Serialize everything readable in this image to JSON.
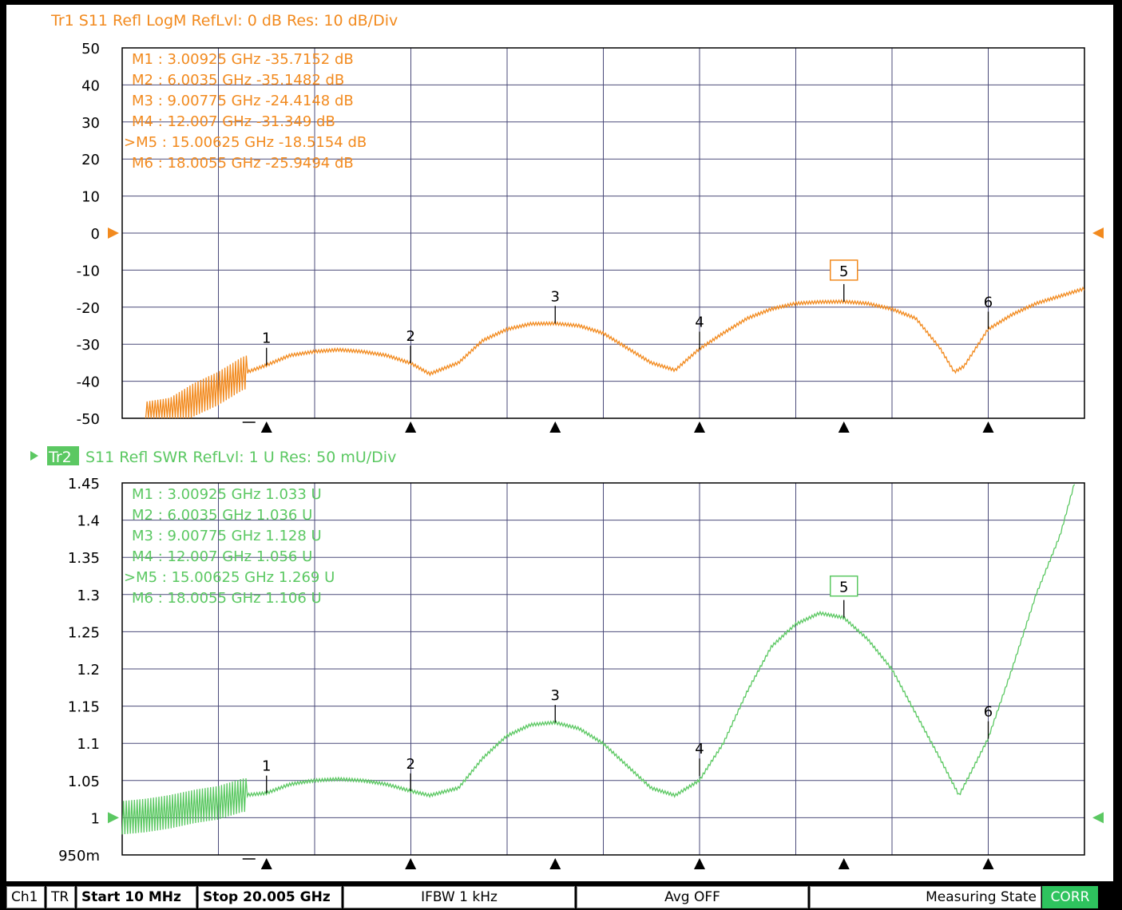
{
  "colors": {
    "trace1": "#f28a1e",
    "trace2": "#5bc862",
    "grid": "#4b4b7a",
    "frame": "#000000"
  },
  "chart_data": [
    {
      "type": "line",
      "title": "Tr1  S11 Refl LogM RefLvl: 0  dB Res: 10  dB/Div",
      "trace_tag": "",
      "xlabel": "",
      "ylabel": "",
      "xlim": [
        0.01,
        20.005
      ],
      "ylim": [
        -50,
        50
      ],
      "yticks": [
        "50",
        "40",
        "30",
        "20",
        "10",
        "0",
        "-10",
        "-20",
        "-30",
        "-40",
        "-50"
      ],
      "ref_value": 0,
      "grid": true,
      "series": [
        {
          "x": [
            0.5,
            1.0,
            1.5,
            2.0,
            2.5,
            3.0,
            3.5,
            4.0,
            4.5,
            5.0,
            5.5,
            6.0,
            6.4,
            7.0,
            7.5,
            8.0,
            8.5,
            9.0,
            9.5,
            10.0,
            10.5,
            11.0,
            11.5,
            12.0,
            12.5,
            13.0,
            13.5,
            14.0,
            14.5,
            15.0,
            15.5,
            16.0,
            16.5,
            17.0,
            17.3,
            17.5,
            18.0,
            18.5,
            19.0,
            19.5,
            20.0
          ],
          "y": [
            -50,
            -49,
            -45,
            -42,
            -38,
            -35.7,
            -33,
            -32,
            -31.5,
            -32,
            -33,
            -35.1,
            -38,
            -35,
            -29,
            -26,
            -24.5,
            -24.4,
            -25,
            -27,
            -31,
            -35,
            -37,
            -31.3,
            -27,
            -23,
            -20.5,
            -19,
            -18.6,
            -18.5,
            -19,
            -20.5,
            -23,
            -31,
            -37.5,
            -36,
            -26,
            -22,
            -19,
            -17,
            -15
          ]
        }
      ],
      "markers": [
        {
          "id": "1",
          "x": 3.00925,
          "y": -35.7152
        },
        {
          "id": "2",
          "x": 6.0035,
          "y": -35.1482
        },
        {
          "id": "3",
          "x": 9.00775,
          "y": -24.4148
        },
        {
          "id": "4",
          "x": 12.007,
          "y": -31.349
        },
        {
          "id": "5",
          "x": 15.00625,
          "y": -18.5154,
          "active": true
        },
        {
          "id": "6",
          "x": 18.0055,
          "y": -25.9494
        }
      ],
      "marker_readout": [
        "M1 :  3.00925 GHz  -35.7152  dB",
        "M2 :  6.0035 GHz  -35.1482  dB",
        "M3 :  9.00775 GHz  -24.4148  dB",
        "M4 :  12.007 GHz  -31.349  dB",
        ">M5 :  15.00625 GHz  -18.5154  dB",
        "M6 :  18.0055 GHz  -25.9494  dB"
      ]
    },
    {
      "type": "line",
      "title": "S11 Refl SWR RefLvl: 1  U Res: 50 mU/Div",
      "trace_tag": "Tr2",
      "xlabel": "",
      "ylabel": "",
      "xlim": [
        0.01,
        20.005
      ],
      "ylim": [
        0.95,
        1.45
      ],
      "yticks": [
        "1.45",
        "1.4",
        "1.35",
        "1.3",
        "1.25",
        "1.2",
        "1.15",
        "1.1",
        "1.05",
        "1",
        "950m"
      ],
      "ref_value": 1,
      "grid": true,
      "series": [
        {
          "x": [
            0.01,
            0.5,
            1.0,
            1.5,
            2.0,
            2.5,
            3.0,
            3.5,
            4.0,
            4.5,
            5.0,
            5.5,
            6.0,
            6.4,
            7.0,
            7.5,
            8.0,
            8.5,
            9.0,
            9.5,
            10.0,
            10.5,
            11.0,
            11.5,
            12.0,
            12.5,
            13.0,
            13.5,
            14.0,
            14.5,
            15.0,
            15.5,
            16.0,
            16.5,
            17.0,
            17.4,
            18.0,
            18.5,
            19.0,
            19.5,
            19.8
          ],
          "y": [
            1.0,
            1.003,
            1.008,
            1.015,
            1.02,
            1.03,
            1.033,
            1.045,
            1.05,
            1.052,
            1.05,
            1.045,
            1.036,
            1.03,
            1.04,
            1.08,
            1.11,
            1.125,
            1.128,
            1.12,
            1.1,
            1.07,
            1.04,
            1.03,
            1.05,
            1.1,
            1.17,
            1.23,
            1.26,
            1.275,
            1.269,
            1.24,
            1.2,
            1.14,
            1.08,
            1.03,
            1.106,
            1.2,
            1.3,
            1.38,
            1.45
          ]
        }
      ],
      "markers": [
        {
          "id": "1",
          "x": 3.00925,
          "y": 1.033
        },
        {
          "id": "2",
          "x": 6.0035,
          "y": 1.036
        },
        {
          "id": "3",
          "x": 9.00775,
          "y": 1.128
        },
        {
          "id": "4",
          "x": 12.007,
          "y": 1.056
        },
        {
          "id": "5",
          "x": 15.00625,
          "y": 1.269,
          "active": true
        },
        {
          "id": "6",
          "x": 18.0055,
          "y": 1.106
        }
      ],
      "marker_readout": [
        "M1 :  3.00925 GHz  1.033  U",
        "M2 :  6.0035 GHz  1.036  U",
        "M3 :  9.00775 GHz  1.128  U",
        "M4 :  12.007 GHz  1.056  U",
        ">M5 :  15.00625 GHz  1.269  U",
        "M6 :  18.0055 GHz  1.106  U"
      ]
    }
  ],
  "status": {
    "channel": "Ch1",
    "mode": "TR",
    "start": "Start 10 MHz",
    "stop": "Stop 20.005 GHz",
    "ifbw": "IFBW 1 kHz",
    "avg": "Avg OFF",
    "state": "Measuring State",
    "corr": "CORR"
  }
}
